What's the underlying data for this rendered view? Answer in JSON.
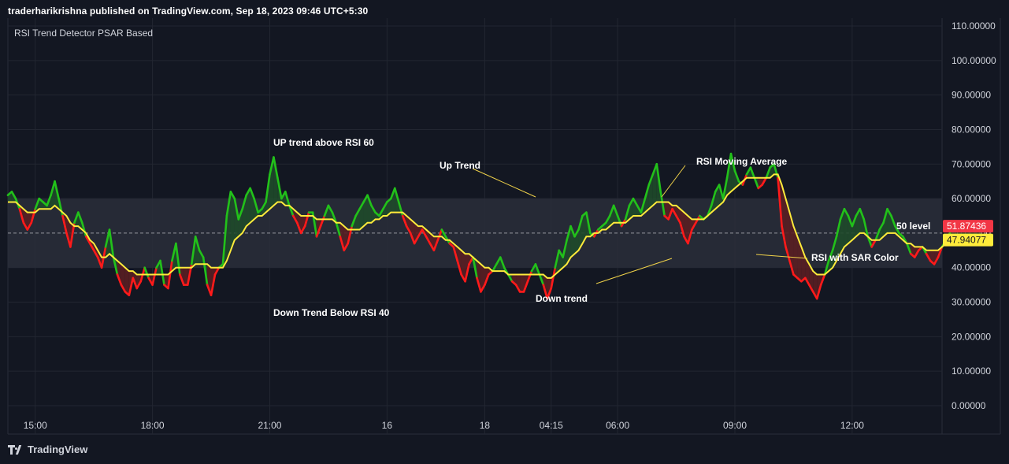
{
  "header": {
    "published": "traderharikrishna published on TradingView.com, Sep 18, 2023 09:46 UTC+5:30"
  },
  "indicator": {
    "title": "RSI Trend Detector PSAR Based"
  },
  "footer": {
    "brand": "TradingView"
  },
  "colors": {
    "background": "#131722",
    "grid": "#222631",
    "band_fill": "#2a2e39",
    "up": "#22c11a",
    "down": "#ff1a1a",
    "ma": "#ffeb3b",
    "up_fill": "#1f4a2a",
    "down_fill": "#5a1e22",
    "price_label_red": "#f23645",
    "price_label_yellow": "#ffeb3b"
  },
  "chart_data": {
    "type": "line",
    "title": "RSI Trend Detector PSAR Based",
    "ylim": [
      0,
      110
    ],
    "y_ticks": [
      "110.00000",
      "100.00000",
      "90.00000",
      "80.00000",
      "70.00000",
      "60.00000",
      "50.00000",
      "40.00000",
      "30.00000",
      "20.00000",
      "10.00000",
      "0.00000"
    ],
    "y_tick_values": [
      110,
      100,
      90,
      80,
      70,
      60,
      50,
      40,
      30,
      20,
      10,
      0
    ],
    "x_tick_labels": [
      "15:00",
      "18:00",
      "21:00",
      "16",
      "18",
      "04:15",
      "06:00",
      "09:00",
      "12:00"
    ],
    "x_tick_index": [
      7,
      37,
      67,
      97,
      122,
      139,
      156,
      186,
      216
    ],
    "x_count": 240,
    "band": {
      "upper": 60,
      "lower": 40,
      "mid": 50
    },
    "series": [
      {
        "name": "RSI with SAR Color",
        "values": [
          61,
          62,
          60,
          57,
          53,
          51,
          53,
          57,
          60,
          59,
          58,
          61,
          65,
          60,
          55,
          50,
          46,
          53,
          56,
          53,
          49,
          47,
          45,
          43,
          40,
          46,
          51,
          43,
          38,
          35,
          33,
          32,
          37,
          34,
          36,
          40,
          37,
          35,
          40,
          42,
          35,
          34,
          42,
          47,
          38,
          35,
          35,
          41,
          49,
          45,
          43,
          35,
          32,
          38,
          40,
          41,
          55,
          62,
          60,
          54,
          57,
          61,
          63,
          60,
          56,
          57,
          59,
          67,
          72,
          66,
          60,
          62,
          58,
          55,
          53,
          50,
          52,
          56,
          56,
          49,
          52,
          55,
          58,
          56,
          53,
          49,
          45,
          47,
          52,
          55,
          57,
          59,
          61,
          58,
          56,
          55,
          57,
          59,
          60,
          63,
          59,
          55,
          52,
          50,
          47,
          49,
          51,
          49,
          47,
          45,
          48,
          51,
          49,
          47,
          46,
          42,
          38,
          36,
          41,
          43,
          37,
          33,
          35,
          38,
          39,
          41,
          43,
          40,
          38,
          36,
          35,
          33,
          33,
          36,
          39,
          41,
          38,
          35,
          31,
          34,
          40,
          45,
          43,
          48,
          52,
          49,
          51,
          55,
          56,
          50,
          49,
          51,
          52,
          53,
          55,
          58,
          55,
          52,
          54,
          58,
          60,
          58,
          56,
          60,
          64,
          67,
          70,
          62,
          55,
          54,
          57,
          55,
          53,
          49,
          47,
          51,
          53,
          55,
          54,
          55,
          58,
          62,
          64,
          60,
          66,
          73,
          68,
          65,
          64,
          67,
          69,
          66,
          63,
          64,
          66,
          69,
          70,
          66,
          52,
          46,
          42,
          38,
          37,
          36,
          37,
          35,
          33,
          31,
          35,
          38,
          42,
          45,
          49,
          54,
          57,
          55,
          52,
          55,
          57,
          54,
          49,
          46,
          48,
          51,
          53,
          57,
          55,
          52,
          50,
          49,
          47,
          44,
          43,
          45,
          46,
          44,
          42,
          41,
          43,
          46,
          48,
          50,
          52,
          52,
          52,
          52,
          52,
          52,
          52,
          52
        ]
      },
      {
        "name": "RSI Moving Average",
        "values": [
          59,
          59,
          59,
          58,
          57,
          56,
          56,
          56,
          57,
          57,
          57,
          57,
          58,
          57,
          56,
          55,
          53,
          52,
          52,
          51,
          50,
          48,
          47,
          45,
          43,
          43,
          44,
          43,
          42,
          41,
          40,
          39,
          39,
          38,
          38,
          38,
          38,
          38,
          38,
          38,
          38,
          38,
          39,
          40,
          40,
          40,
          40,
          40,
          41,
          41,
          41,
          41,
          40,
          40,
          40,
          40,
          42,
          45,
          48,
          49,
          50,
          52,
          53,
          54,
          55,
          55,
          56,
          57,
          58,
          59,
          59,
          58,
          58,
          57,
          56,
          55,
          55,
          55,
          55,
          54,
          54,
          54,
          54,
          54,
          53,
          53,
          52,
          51,
          51,
          51,
          51,
          52,
          53,
          53,
          54,
          54,
          55,
          55,
          56,
          56,
          56,
          56,
          55,
          54,
          53,
          52,
          52,
          51,
          50,
          49,
          49,
          49,
          48,
          48,
          47,
          46,
          45,
          44,
          44,
          43,
          42,
          41,
          40,
          40,
          39,
          39,
          39,
          39,
          38,
          38,
          38,
          38,
          38,
          38,
          38,
          38,
          38,
          38,
          37,
          37,
          38,
          39,
          40,
          41,
          43,
          44,
          45,
          47,
          49,
          49,
          50,
          50,
          51,
          51,
          52,
          53,
          53,
          53,
          53,
          54,
          55,
          55,
          55,
          56,
          57,
          58,
          59,
          59,
          59,
          59,
          58,
          58,
          57,
          56,
          55,
          54,
          54,
          54,
          54,
          55,
          56,
          57,
          58,
          59,
          61,
          62,
          63,
          64,
          65,
          66,
          66,
          66,
          66,
          66,
          66,
          66,
          67,
          67,
          64,
          60,
          56,
          52,
          49,
          46,
          43,
          41,
          39,
          38,
          38,
          38,
          39,
          40,
          42,
          44,
          46,
          47,
          48,
          49,
          50,
          50,
          49,
          48,
          48,
          48,
          49,
          50,
          50,
          50,
          49,
          48,
          47,
          47,
          46,
          46,
          46,
          45,
          45,
          45,
          45,
          46,
          47,
          48,
          48,
          48,
          48,
          48,
          48,
          48,
          48,
          48
        ]
      }
    ],
    "last_values": {
      "rsi": "51.87436",
      "ma": "47.94077"
    },
    "annotations": [
      {
        "text": "UP trend above RSI 60"
      },
      {
        "text": "Up Trend"
      },
      {
        "text": "RSI Moving Average"
      },
      {
        "text": "50 level"
      },
      {
        "text": "RSI with SAR Color"
      },
      {
        "text": "Down trend"
      },
      {
        "text": "Down Trend Below RSI 40"
      }
    ]
  }
}
